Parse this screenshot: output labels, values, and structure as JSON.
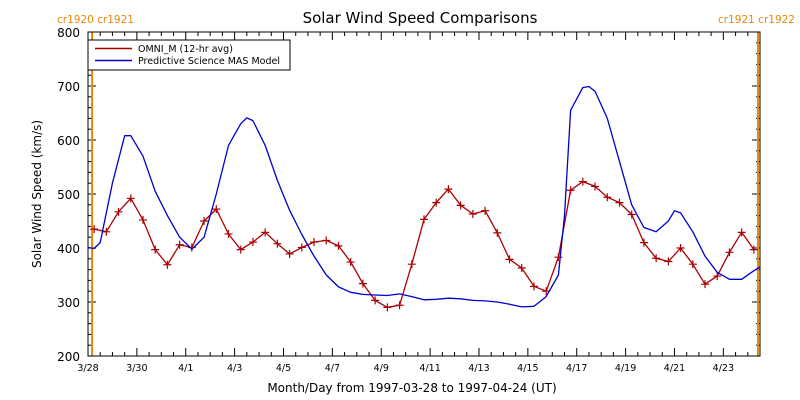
{
  "chart_data": {
    "type": "line",
    "title": "Solar Wind Speed Comparisons",
    "xlabel": "Month/Day from 1997-03-28 to 1997-04-24 (UT)",
    "ylabel": "Solar Wind Speed (km/s)",
    "xlim": [
      "1997-03-28",
      "1997-04-24T12:00"
    ],
    "ylim": [
      200,
      800
    ],
    "yticks": [
      200,
      300,
      400,
      500,
      600,
      700,
      800
    ],
    "xticks": [
      {
        "date": "1997-03-28",
        "label": "3/28"
      },
      {
        "date": "1997-03-30",
        "label": "3/30"
      },
      {
        "date": "1997-04-01",
        "label": "4/1"
      },
      {
        "date": "1997-04-03",
        "label": "4/3"
      },
      {
        "date": "1997-04-05",
        "label": "4/5"
      },
      {
        "date": "1997-04-07",
        "label": "4/7"
      },
      {
        "date": "1997-04-09",
        "label": "4/9"
      },
      {
        "date": "1997-04-11",
        "label": "4/11"
      },
      {
        "date": "1997-04-13",
        "label": "4/13"
      },
      {
        "date": "1997-04-15",
        "label": "4/15"
      },
      {
        "date": "1997-04-17",
        "label": "4/17"
      },
      {
        "date": "1997-04-19",
        "label": "4/19"
      },
      {
        "date": "1997-04-21",
        "label": "4/21"
      },
      {
        "date": "1997-04-23",
        "label": "4/23"
      }
    ],
    "legend": {
      "position": "top-left"
    },
    "carrington_markers": [
      {
        "date": "1997-03-28T04:00",
        "label": "cr1920 cr1921",
        "side": "left"
      },
      {
        "date": "1997-04-24T10:00",
        "label": "cr1921 cr1922",
        "side": "right"
      }
    ],
    "series": [
      {
        "name": "OMNI_M (12-hr avg)",
        "color": "#aa0000",
        "marker": "plus",
        "points": [
          [
            "1997-03-28T06:00",
            435
          ],
          [
            "1997-03-28T18:00",
            430
          ],
          [
            "1997-03-29T06:00",
            467
          ],
          [
            "1997-03-29T18:00",
            492
          ],
          [
            "1997-03-30T06:00",
            452
          ],
          [
            "1997-03-30T18:00",
            397
          ],
          [
            "1997-03-31T06:00",
            369
          ],
          [
            "1997-03-31T18:00",
            406
          ],
          [
            "1997-04-01T06:00",
            401
          ],
          [
            "1997-04-01T18:00",
            450
          ],
          [
            "1997-04-02T06:00",
            472
          ],
          [
            "1997-04-02T18:00",
            426
          ],
          [
            "1997-04-03T06:00",
            397
          ],
          [
            "1997-04-03T18:00",
            411
          ],
          [
            "1997-04-04T06:00",
            429
          ],
          [
            "1997-04-04T18:00",
            408
          ],
          [
            "1997-04-05T06:00",
            389
          ],
          [
            "1997-04-05T18:00",
            401
          ],
          [
            "1997-04-06T06:00",
            411
          ],
          [
            "1997-04-06T18:00",
            414
          ],
          [
            "1997-04-07T06:00",
            404
          ],
          [
            "1997-04-07T18:00",
            374
          ],
          [
            "1997-04-08T06:00",
            334
          ],
          [
            "1997-04-08T18:00",
            303
          ],
          [
            "1997-04-09T06:00",
            290
          ],
          [
            "1997-04-09T18:00",
            294
          ],
          [
            "1997-04-10T06:00",
            370
          ],
          [
            "1997-04-10T18:00",
            453
          ],
          [
            "1997-04-11T06:00",
            484
          ],
          [
            "1997-04-11T18:00",
            509
          ],
          [
            "1997-04-12T06:00",
            479
          ],
          [
            "1997-04-12T18:00",
            463
          ],
          [
            "1997-04-13T06:00",
            469
          ],
          [
            "1997-04-13T18:00",
            428
          ],
          [
            "1997-04-14T06:00",
            379
          ],
          [
            "1997-04-14T18:00",
            363
          ],
          [
            "1997-04-15T06:00",
            329
          ],
          [
            "1997-04-15T18:00",
            320
          ],
          [
            "1997-04-16T06:00",
            383
          ],
          [
            "1997-04-16T18:00",
            507
          ],
          [
            "1997-04-17T06:00",
            523
          ],
          [
            "1997-04-17T18:00",
            514
          ],
          [
            "1997-04-18T06:00",
            494
          ],
          [
            "1997-04-18T18:00",
            484
          ],
          [
            "1997-04-19T06:00",
            462
          ],
          [
            "1997-04-19T18:00",
            410
          ],
          [
            "1997-04-20T06:00",
            381
          ],
          [
            "1997-04-20T18:00",
            375
          ],
          [
            "1997-04-21T06:00",
            400
          ],
          [
            "1997-04-21T18:00",
            370
          ],
          [
            "1997-04-22T06:00",
            333
          ],
          [
            "1997-04-22T18:00",
            348
          ],
          [
            "1997-04-23T06:00",
            392
          ],
          [
            "1997-04-23T18:00",
            429
          ],
          [
            "1997-04-24T06:00",
            397
          ]
        ]
      },
      {
        "name": "Predictive Science MAS Model",
        "color": "#0000cc",
        "marker": "none",
        "points": [
          [
            "1997-03-28T00:00",
            401
          ],
          [
            "1997-03-28T06:00",
            399
          ],
          [
            "1997-03-28T12:00",
            410
          ],
          [
            "1997-03-29T00:00",
            520
          ],
          [
            "1997-03-29T12:00",
            608
          ],
          [
            "1997-03-29T18:00",
            608
          ],
          [
            "1997-03-30T06:00",
            570
          ],
          [
            "1997-03-30T18:00",
            505
          ],
          [
            "1997-03-31T06:00",
            460
          ],
          [
            "1997-03-31T18:00",
            420
          ],
          [
            "1997-04-01T06:00",
            398
          ],
          [
            "1997-04-01T18:00",
            420
          ],
          [
            "1997-04-02T06:00",
            500
          ],
          [
            "1997-04-02T18:00",
            590
          ],
          [
            "1997-04-03T06:00",
            630
          ],
          [
            "1997-04-03T12:00",
            641
          ],
          [
            "1997-04-03T18:00",
            636
          ],
          [
            "1997-04-04T06:00",
            590
          ],
          [
            "1997-04-04T18:00",
            525
          ],
          [
            "1997-04-05T06:00",
            470
          ],
          [
            "1997-04-05T18:00",
            425
          ],
          [
            "1997-04-06T06:00",
            385
          ],
          [
            "1997-04-06T18:00",
            350
          ],
          [
            "1997-04-07T06:00",
            328
          ],
          [
            "1997-04-07T18:00",
            318
          ],
          [
            "1997-04-08T06:00",
            314
          ],
          [
            "1997-04-08T18:00",
            313
          ],
          [
            "1997-04-09T06:00",
            312
          ],
          [
            "1997-04-09T18:00",
            315
          ],
          [
            "1997-04-10T06:00",
            310
          ],
          [
            "1997-04-10T18:00",
            304
          ],
          [
            "1997-04-11T06:00",
            305
          ],
          [
            "1997-04-11T18:00",
            307
          ],
          [
            "1997-04-12T06:00",
            306
          ],
          [
            "1997-04-12T18:00",
            303
          ],
          [
            "1997-04-13T06:00",
            302
          ],
          [
            "1997-04-13T18:00",
            300
          ],
          [
            "1997-04-14T06:00",
            296
          ],
          [
            "1997-04-14T18:00",
            291
          ],
          [
            "1997-04-15T06:00",
            292
          ],
          [
            "1997-04-15T18:00",
            310
          ],
          [
            "1997-04-16T06:00",
            350
          ],
          [
            "1997-04-16T12:00",
            460
          ],
          [
            "1997-04-16T18:00",
            655
          ],
          [
            "1997-04-17T06:00",
            697
          ],
          [
            "1997-04-17T12:00",
            699
          ],
          [
            "1997-04-17T18:00",
            690
          ],
          [
            "1997-04-18T06:00",
            640
          ],
          [
            "1997-04-18T18:00",
            560
          ],
          [
            "1997-04-19T06:00",
            480
          ],
          [
            "1997-04-19T18:00",
            438
          ],
          [
            "1997-04-20T06:00",
            430
          ],
          [
            "1997-04-20T18:00",
            450
          ],
          [
            "1997-04-21T00:00",
            469
          ],
          [
            "1997-04-21T06:00",
            465
          ],
          [
            "1997-04-21T18:00",
            430
          ],
          [
            "1997-04-22T06:00",
            385
          ],
          [
            "1997-04-22T18:00",
            355
          ],
          [
            "1997-04-23T06:00",
            342
          ],
          [
            "1997-04-23T18:00",
            342
          ],
          [
            "1997-04-24T06:00",
            358
          ],
          [
            "1997-04-24T12:00",
            365
          ]
        ]
      }
    ]
  }
}
